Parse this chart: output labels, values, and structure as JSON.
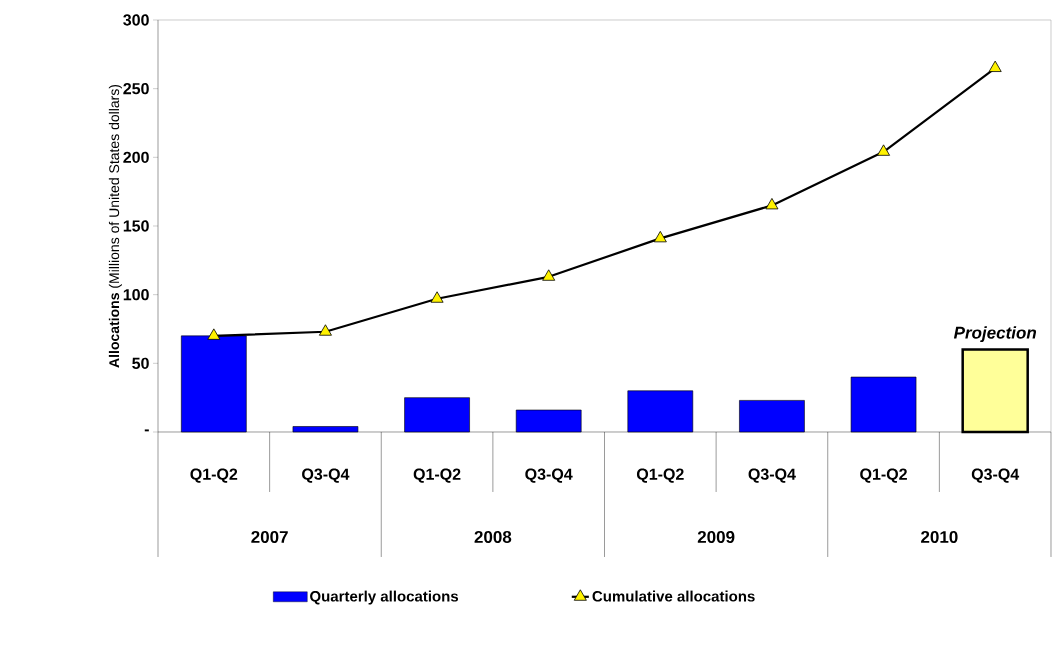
{
  "chart_data": {
    "type": "bar",
    "ylabel": "**Allocations** (Millions of United States dollars)",
    "categories": [
      "Q1-Q2",
      "Q3-Q4",
      "Q1-Q2",
      "Q3-Q4",
      "Q1-Q2",
      "Q3-Q4",
      "Q1-Q2",
      "Q3-Q4"
    ],
    "series": [
      {
        "name": "Quarterly allocations",
        "color": "#0000ff",
        "colors": [
          "#0000ff",
          "#0000ff",
          "#0000ff",
          "#0000ff",
          "#0000ff",
          "#0000ff",
          "#0000ff",
          "#ffff99"
        ],
        "values": [
          70,
          4,
          25,
          16,
          30,
          23,
          40,
          60
        ]
      },
      {
        "name": "Cumulative allocations",
        "type": "line",
        "color": "#000000",
        "marker": "triangle",
        "values": [
          70,
          73,
          97,
          113,
          141,
          165,
          204,
          265
        ]
      }
    ],
    "ylim": [
      0,
      300
    ],
    "yticks": [
      {
        "value": 0,
        "label": "-"
      },
      50,
      100,
      150,
      200,
      250,
      300
    ],
    "annotations": [
      "2007",
      "2008",
      "2009",
      "2010",
      "Projection"
    ],
    "legend": "bottom"
  }
}
